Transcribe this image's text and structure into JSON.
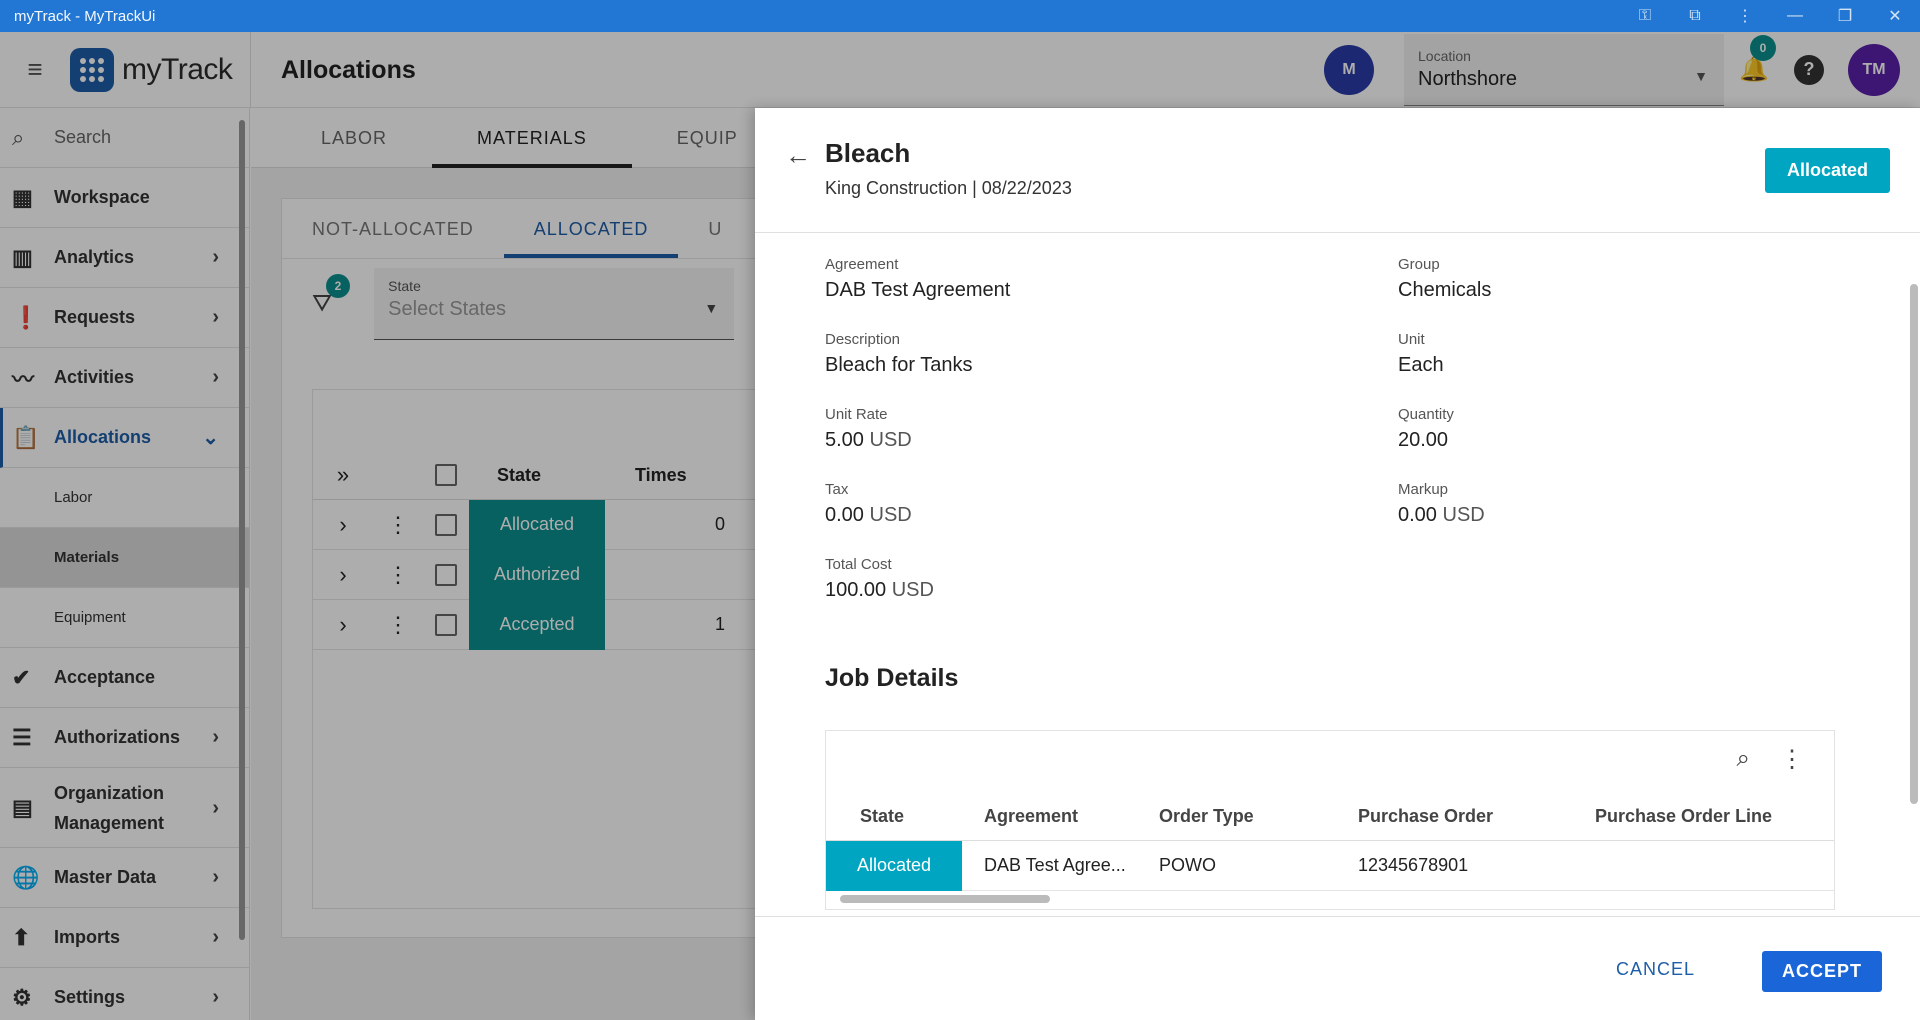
{
  "window": {
    "title": "myTrack - MyTrackUi"
  },
  "header": {
    "app_name": "myTrack",
    "page_title": "Allocations",
    "user_initial": "M",
    "location_label": "Location",
    "location_value": "Northshore",
    "notification_count": "0",
    "profile_initials": "TM"
  },
  "sidebar": {
    "search_placeholder": "Search",
    "items": [
      {
        "label": "Workspace",
        "icon": "grid-icon"
      },
      {
        "label": "Analytics",
        "icon": "chart-icon"
      },
      {
        "label": "Requests",
        "icon": "clipboard-alert-icon"
      },
      {
        "label": "Activities",
        "icon": "trend-icon"
      },
      {
        "label": "Allocations",
        "icon": "clipboard-icon"
      },
      {
        "label": "Acceptance",
        "icon": "check-circle-icon"
      },
      {
        "label": "Authorizations",
        "icon": "checklist-icon"
      },
      {
        "label": "Organization Management",
        "icon": "building-icon"
      },
      {
        "label": "Master Data",
        "icon": "globe-icon"
      },
      {
        "label": "Imports",
        "icon": "upload-icon"
      },
      {
        "label": "Settings",
        "icon": "gear-icon"
      }
    ],
    "allocations_sub": [
      "Labor",
      "Materials",
      "Equipment"
    ]
  },
  "main": {
    "tabs": [
      "LABOR",
      "MATERIALS",
      "EQUIP"
    ],
    "subtabs": [
      "NOT-ALLOCATED",
      "ALLOCATED",
      "U"
    ],
    "filter_count": "2",
    "state_label": "State",
    "state_placeholder": "Select States",
    "grid_headers": [
      "State",
      "Times"
    ],
    "grid_rows": [
      {
        "state": "Allocated",
        "time": "0"
      },
      {
        "state": "Authorized",
        "time": ""
      },
      {
        "state": "Accepted",
        "time": "1"
      }
    ]
  },
  "drawer": {
    "title": "Bleach",
    "subtitle": "King Construction | 08/22/2023",
    "status": "Allocated",
    "fields": {
      "agreement_label": "Agreement",
      "agreement": "DAB Test Agreement",
      "group_label": "Group",
      "group": "Chemicals",
      "description_label": "Description",
      "description": "Bleach for Tanks",
      "unit_label": "Unit",
      "unit": "Each",
      "unit_rate_label": "Unit Rate",
      "unit_rate": "5.00",
      "quantity_label": "Quantity",
      "quantity": "20.00",
      "tax_label": "Tax",
      "tax": "0.00",
      "markup_label": "Markup",
      "markup": "0.00",
      "total_cost_label": "Total Cost",
      "total_cost": "100.00",
      "currency": "USD"
    },
    "job_details_title": "Job Details",
    "job_table": {
      "headers": [
        "State",
        "Agreement",
        "Order Type",
        "Purchase Order",
        "Purchase Order Line"
      ],
      "row": {
        "state": "Allocated",
        "agreement": "DAB Test Agree...",
        "order_type": "POWO",
        "purchase_order": "12345678901",
        "purchase_order_line": ""
      }
    },
    "cancel_label": "CANCEL",
    "accept_label": "ACCEPT"
  }
}
